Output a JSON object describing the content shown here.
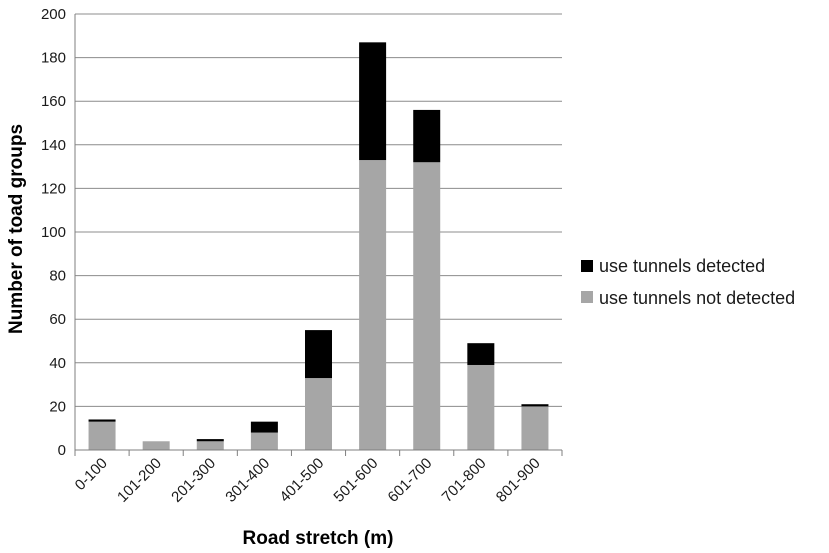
{
  "chart_data": {
    "type": "bar",
    "stacked": true,
    "categories": [
      "0-100",
      "101-200",
      "201-300",
      "301-400",
      "401-500",
      "501-600",
      "601-700",
      "701-800",
      "801-900"
    ],
    "series": [
      {
        "name": "use tunnels not detected",
        "color": "#a6a6a6",
        "values": [
          13,
          4,
          4,
          8,
          33,
          133,
          132,
          39,
          20
        ]
      },
      {
        "name": "use tunnels detected",
        "color": "#000000",
        "values": [
          1,
          0,
          1,
          5,
          22,
          54,
          24,
          10,
          1
        ]
      }
    ],
    "xlabel": "Road stretch (m)",
    "ylabel": "Number of toad groups",
    "ylim": [
      0,
      200
    ],
    "yticks": [
      0,
      20,
      40,
      60,
      80,
      100,
      120,
      140,
      160,
      180,
      200
    ],
    "grid": true,
    "legend_position": "right"
  }
}
